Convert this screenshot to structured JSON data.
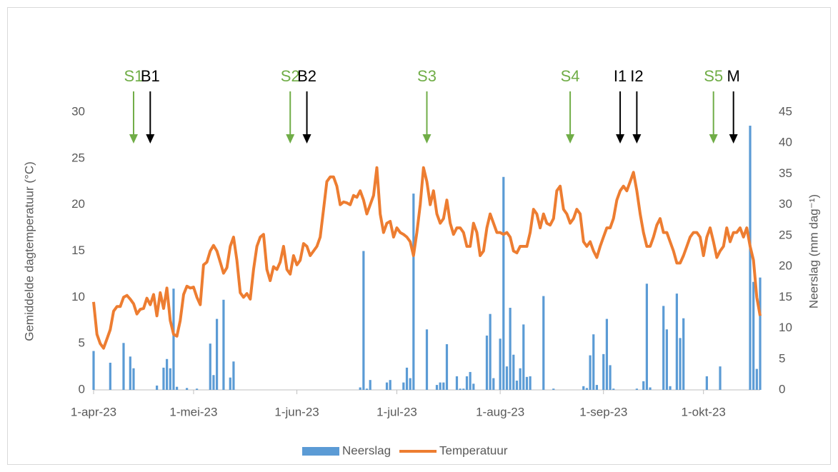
{
  "chart_data": {
    "type": "bar_line",
    "y_label": "Gemiddelde dagtemperatuur (°C)",
    "y2_label": "Neerslag (mm dag⁻¹)",
    "xlim": [
      0,
      200
    ],
    "xticks": [
      {
        "value": 0,
        "label": "1-apr-23"
      },
      {
        "value": 30,
        "label": "1-mei-23"
      },
      {
        "value": 61,
        "label": "1-jun-23"
      },
      {
        "value": 91,
        "label": "1-jul-23"
      },
      {
        "value": 122,
        "label": "1-aug-23"
      },
      {
        "value": 153,
        "label": "1-sep-23"
      },
      {
        "value": 183,
        "label": "1-okt-23"
      }
    ],
    "ylim": [
      0,
      30
    ],
    "yticks": [
      0,
      5,
      10,
      15,
      20,
      25,
      30
    ],
    "y2lim": [
      0,
      45
    ],
    "y2ticks": [
      0,
      5,
      10,
      15,
      20,
      25,
      30,
      35,
      40,
      45
    ],
    "legend": "bottom",
    "series": [
      {
        "name": "Neerslag",
        "type": "bar",
        "axis": "y2",
        "color": "#5b9bd5",
        "x": [
          0,
          5,
          9,
          11,
          12,
          19,
          21,
          22,
          23,
          24,
          25,
          28,
          31,
          35,
          36,
          37,
          39,
          41,
          42,
          80,
          81,
          82,
          83,
          88,
          89,
          93,
          94,
          95,
          96,
          100,
          103,
          104,
          105,
          106,
          109,
          110,
          111,
          112,
          113,
          114,
          118,
          119,
          120,
          122,
          123,
          124,
          125,
          126,
          127,
          128,
          129,
          130,
          131,
          135,
          138,
          147,
          148,
          149,
          150,
          151,
          153,
          154,
          155,
          156,
          163,
          165,
          166,
          167,
          171,
          172,
          173,
          175,
          176,
          177,
          184,
          188,
          197,
          198,
          199,
          200
        ],
        "values": [
          6.3,
          4.4,
          7.6,
          5.4,
          3.5,
          0.7,
          3.6,
          5,
          3.5,
          16.4,
          0.5,
          0.3,
          0.2,
          7.5,
          2.4,
          11.5,
          14.6,
          2,
          4.6,
          0.4,
          22.5,
          0.2,
          1.6,
          1.2,
          1.6,
          1.2,
          3.6,
          1.9,
          31.8,
          9.8,
          0.8,
          1.2,
          1.2,
          7.4,
          2.2,
          0.2,
          0.2,
          2.2,
          2.9,
          1,
          8.8,
          12.3,
          1.9,
          8.3,
          34.5,
          3.8,
          13.3,
          5.7,
          1.5,
          3.5,
          10.6,
          2.1,
          2.2,
          15.2,
          0.2,
          0.6,
          0.3,
          5.6,
          9,
          0.8,
          5.8,
          11.5,
          4,
          0.2,
          0.2,
          1.4,
          17.2,
          0.4,
          13.6,
          9.8,
          0.6,
          15.6,
          8.4,
          11.6,
          2.2,
          3.8,
          42.8,
          17.5,
          3.4,
          18.2
        ]
      },
      {
        "name": "Temperatuur",
        "type": "line",
        "color": "#ed7d31",
        "x": [
          0,
          1,
          2,
          3,
          4,
          5,
          6,
          7,
          8,
          9,
          10,
          11,
          12,
          13,
          14,
          15,
          16,
          17,
          18,
          19,
          20,
          21,
          22,
          23,
          24,
          25,
          26,
          27,
          28,
          29,
          30,
          31,
          32,
          33,
          34,
          35,
          36,
          37,
          38,
          39,
          40,
          41,
          42,
          43,
          44,
          45,
          46,
          47,
          48,
          49,
          50,
          51,
          52,
          53,
          54,
          55,
          56,
          57,
          58,
          59,
          60,
          61,
          62,
          63,
          64,
          65,
          66,
          67,
          68,
          69,
          70,
          71,
          72,
          73,
          74,
          75,
          76,
          77,
          78,
          79,
          80,
          81,
          82,
          83,
          84,
          85,
          86,
          87,
          88,
          89,
          90,
          91,
          92,
          93,
          94,
          95,
          96,
          97,
          98,
          99,
          100,
          101,
          102,
          103,
          104,
          105,
          106,
          107,
          108,
          109,
          110,
          111,
          112,
          113,
          114,
          115,
          116,
          117,
          118,
          119,
          120,
          121,
          122,
          123,
          124,
          125,
          126,
          127,
          128,
          129,
          130,
          131,
          132,
          133,
          134,
          135,
          136,
          137,
          138,
          139,
          140,
          141,
          142,
          143,
          144,
          145,
          146,
          147,
          148,
          149,
          150,
          151,
          152,
          153,
          154,
          155,
          156,
          157,
          158,
          159,
          160,
          161,
          162,
          163,
          164,
          165,
          166,
          167,
          168,
          169,
          170,
          171,
          172,
          173,
          174,
          175,
          176,
          177,
          178,
          179,
          180,
          181,
          182,
          183,
          184,
          185,
          186,
          187,
          188,
          189,
          190,
          191,
          192,
          193,
          194,
          195,
          196,
          197,
          198,
          199,
          200
        ],
        "values": [
          9.5,
          6,
          5,
          4.5,
          5.5,
          6.5,
          8.5,
          9,
          9,
          10,
          10.2,
          9.8,
          9.3,
          8.2,
          8.7,
          8.8,
          9.9,
          9.2,
          10.3,
          8,
          10.5,
          8.8,
          11,
          7.5,
          6,
          5.8,
          7.5,
          10.3,
          11.2,
          11,
          11.1,
          10,
          9.2,
          13.5,
          13.8,
          15,
          15.6,
          15,
          13.8,
          12.6,
          13.2,
          15.5,
          16.5,
          14,
          10.5,
          10,
          10.4,
          9.8,
          13,
          15.5,
          16.5,
          16.8,
          13,
          11.8,
          13.3,
          13,
          13.8,
          15.5,
          13,
          12.5,
          14.5,
          13.5,
          14,
          15.8,
          15.5,
          14.5,
          15,
          15.5,
          16.5,
          19.5,
          22.5,
          23,
          23,
          22,
          20,
          20.3,
          20.2,
          20,
          21,
          20.8,
          21.5,
          20.5,
          19,
          20,
          21,
          24,
          19,
          17,
          18,
          18.2,
          16.5,
          17.5,
          17,
          16.8,
          16.5,
          16,
          14.5,
          17,
          20,
          24,
          22.5,
          20,
          21.5,
          19,
          18,
          18.5,
          20.5,
          18,
          16.8,
          17.5,
          17.5,
          17,
          15.5,
          15.5,
          18,
          17,
          14.5,
          15,
          17.5,
          19,
          18,
          17,
          17,
          16.8,
          17,
          16.5,
          15,
          14.8,
          15.5,
          15.5,
          15.5,
          17,
          19.5,
          19,
          17.5,
          19,
          18,
          17.8,
          18.5,
          21.5,
          22,
          19.5,
          19,
          18,
          18.5,
          19.5,
          19,
          16,
          15.5,
          16,
          15,
          14.3,
          15.5,
          16.5,
          17.5,
          17.5,
          18.5,
          20.5,
          21.5,
          22,
          21.5,
          22.5,
          23.5,
          21.5,
          19,
          17,
          15.5,
          15.5,
          16.5,
          17.8,
          18.5,
          17,
          17,
          16,
          15,
          13.7,
          13.7,
          14.5,
          15.5,
          16.5,
          17,
          17,
          16.5,
          14.5,
          16.5,
          17.5,
          16,
          14.3,
          15,
          15.5,
          17.5,
          16,
          17,
          17,
          17.5,
          16.5,
          17.5,
          15.5,
          14,
          10,
          8
        ]
      }
    ],
    "annotations": [
      {
        "text": "S1",
        "x": 12,
        "color": "#70ad47"
      },
      {
        "text": "B1",
        "x": 17,
        "color": "#000000"
      },
      {
        "text": "S2",
        "x": 59,
        "color": "#70ad47"
      },
      {
        "text": "B2",
        "x": 64,
        "color": "#000000"
      },
      {
        "text": "S3",
        "x": 100,
        "color": "#70ad47"
      },
      {
        "text": "S4",
        "x": 143,
        "color": "#70ad47"
      },
      {
        "text": "I1",
        "x": 158,
        "color": "#000000"
      },
      {
        "text": "I2",
        "x": 163,
        "color": "#000000"
      },
      {
        "text": "S5",
        "x": 186,
        "color": "#70ad47"
      },
      {
        "text": "M",
        "x": 192,
        "color": "#000000"
      }
    ]
  }
}
